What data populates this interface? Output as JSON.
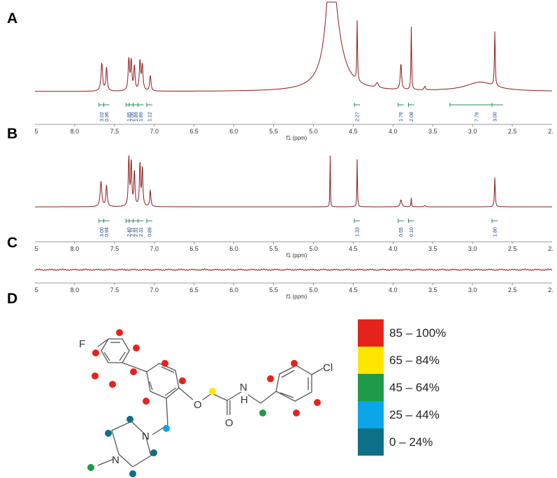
{
  "panels": [
    "A",
    "B",
    "C",
    "D"
  ],
  "axis": {
    "label": "f1 (ppm)",
    "ticks": [
      "8.0",
      "7.5",
      "7.0",
      "6.5",
      "6.0",
      "5.5",
      "5.0",
      "4.5",
      "4.0",
      "3.5",
      "3.0",
      "2.5"
    ],
    "edge_left": "5",
    "edge_right": "2."
  },
  "colors": {
    "spectrum": "#8b1a1a",
    "integral": "#2e8b57",
    "integral_text": "#1a3f8a"
  },
  "chart_data": [
    {
      "panel": "A",
      "type": "line",
      "xlabel": "f1 (ppm)",
      "xlim": [
        8.5,
        2.0
      ],
      "x_reversed": true,
      "peaks_ppm": [
        7.66,
        7.6,
        7.32,
        7.28,
        7.25,
        7.17,
        7.04,
        4.78,
        4.45,
        3.9,
        3.77,
        3.6,
        2.9,
        2.72
      ],
      "integrals": [
        {
          "ppm": 7.66,
          "value": "3.02"
        },
        {
          "ppm": 7.6,
          "value": "0.96"
        },
        {
          "ppm": 7.32,
          "value": "1.85"
        },
        {
          "ppm": 7.28,
          "value": "2.06"
        },
        {
          "ppm": 7.23,
          "value": "1.89"
        },
        {
          "ppm": 7.17,
          "value": "1.89"
        },
        {
          "ppm": 7.06,
          "value": "1.12"
        },
        {
          "ppm": 4.45,
          "value": "2.27"
        },
        {
          "ppm": 3.9,
          "value": "1.76"
        },
        {
          "ppm": 3.77,
          "value": "2.08"
        },
        {
          "ppm": 2.95,
          "value": "7.76"
        },
        {
          "ppm": 2.72,
          "value": "3.00"
        }
      ]
    },
    {
      "panel": "B",
      "type": "line",
      "xlabel": "f1 (ppm)",
      "xlim": [
        8.5,
        2.0
      ],
      "x_reversed": true,
      "peaks_ppm": [
        7.66,
        7.6,
        7.32,
        7.28,
        7.25,
        7.17,
        7.04,
        4.78,
        4.45,
        3.9,
        3.77,
        2.72
      ],
      "integrals": [
        {
          "ppm": 7.66,
          "value": "3.00"
        },
        {
          "ppm": 7.6,
          "value": "0.94"
        },
        {
          "ppm": 7.32,
          "value": "2.40"
        },
        {
          "ppm": 7.28,
          "value": "2.11"
        },
        {
          "ppm": 7.23,
          "value": "2.31"
        },
        {
          "ppm": 7.17,
          "value": "2.31"
        },
        {
          "ppm": 7.06,
          "value": "0.89"
        },
        {
          "ppm": 4.45,
          "value": "1.33"
        },
        {
          "ppm": 3.9,
          "value": "0.55"
        },
        {
          "ppm": 3.77,
          "value": "0.10"
        },
        {
          "ppm": 2.72,
          "value": "1.80"
        }
      ]
    },
    {
      "panel": "C",
      "type": "line",
      "xlabel": "f1 (ppm)",
      "xlim": [
        8.5,
        2.0
      ],
      "x_reversed": true,
      "peaks_ppm": []
    }
  ],
  "molecule": {
    "atoms": [
      "F",
      "O",
      "N",
      "H",
      "O",
      "Cl",
      "N",
      "N"
    ]
  },
  "legend": {
    "items": [
      {
        "label": "85 – 100%",
        "color": "#e4241c"
      },
      {
        "label": "65 – 84%",
        "color": "#ffe600"
      },
      {
        "label": "45 – 64%",
        "color": "#1e9a4a"
      },
      {
        "label": "25 – 44%",
        "color": "#0aa6e6"
      },
      {
        "label": "0 – 24%",
        "color": "#0f6f86"
      }
    ]
  }
}
